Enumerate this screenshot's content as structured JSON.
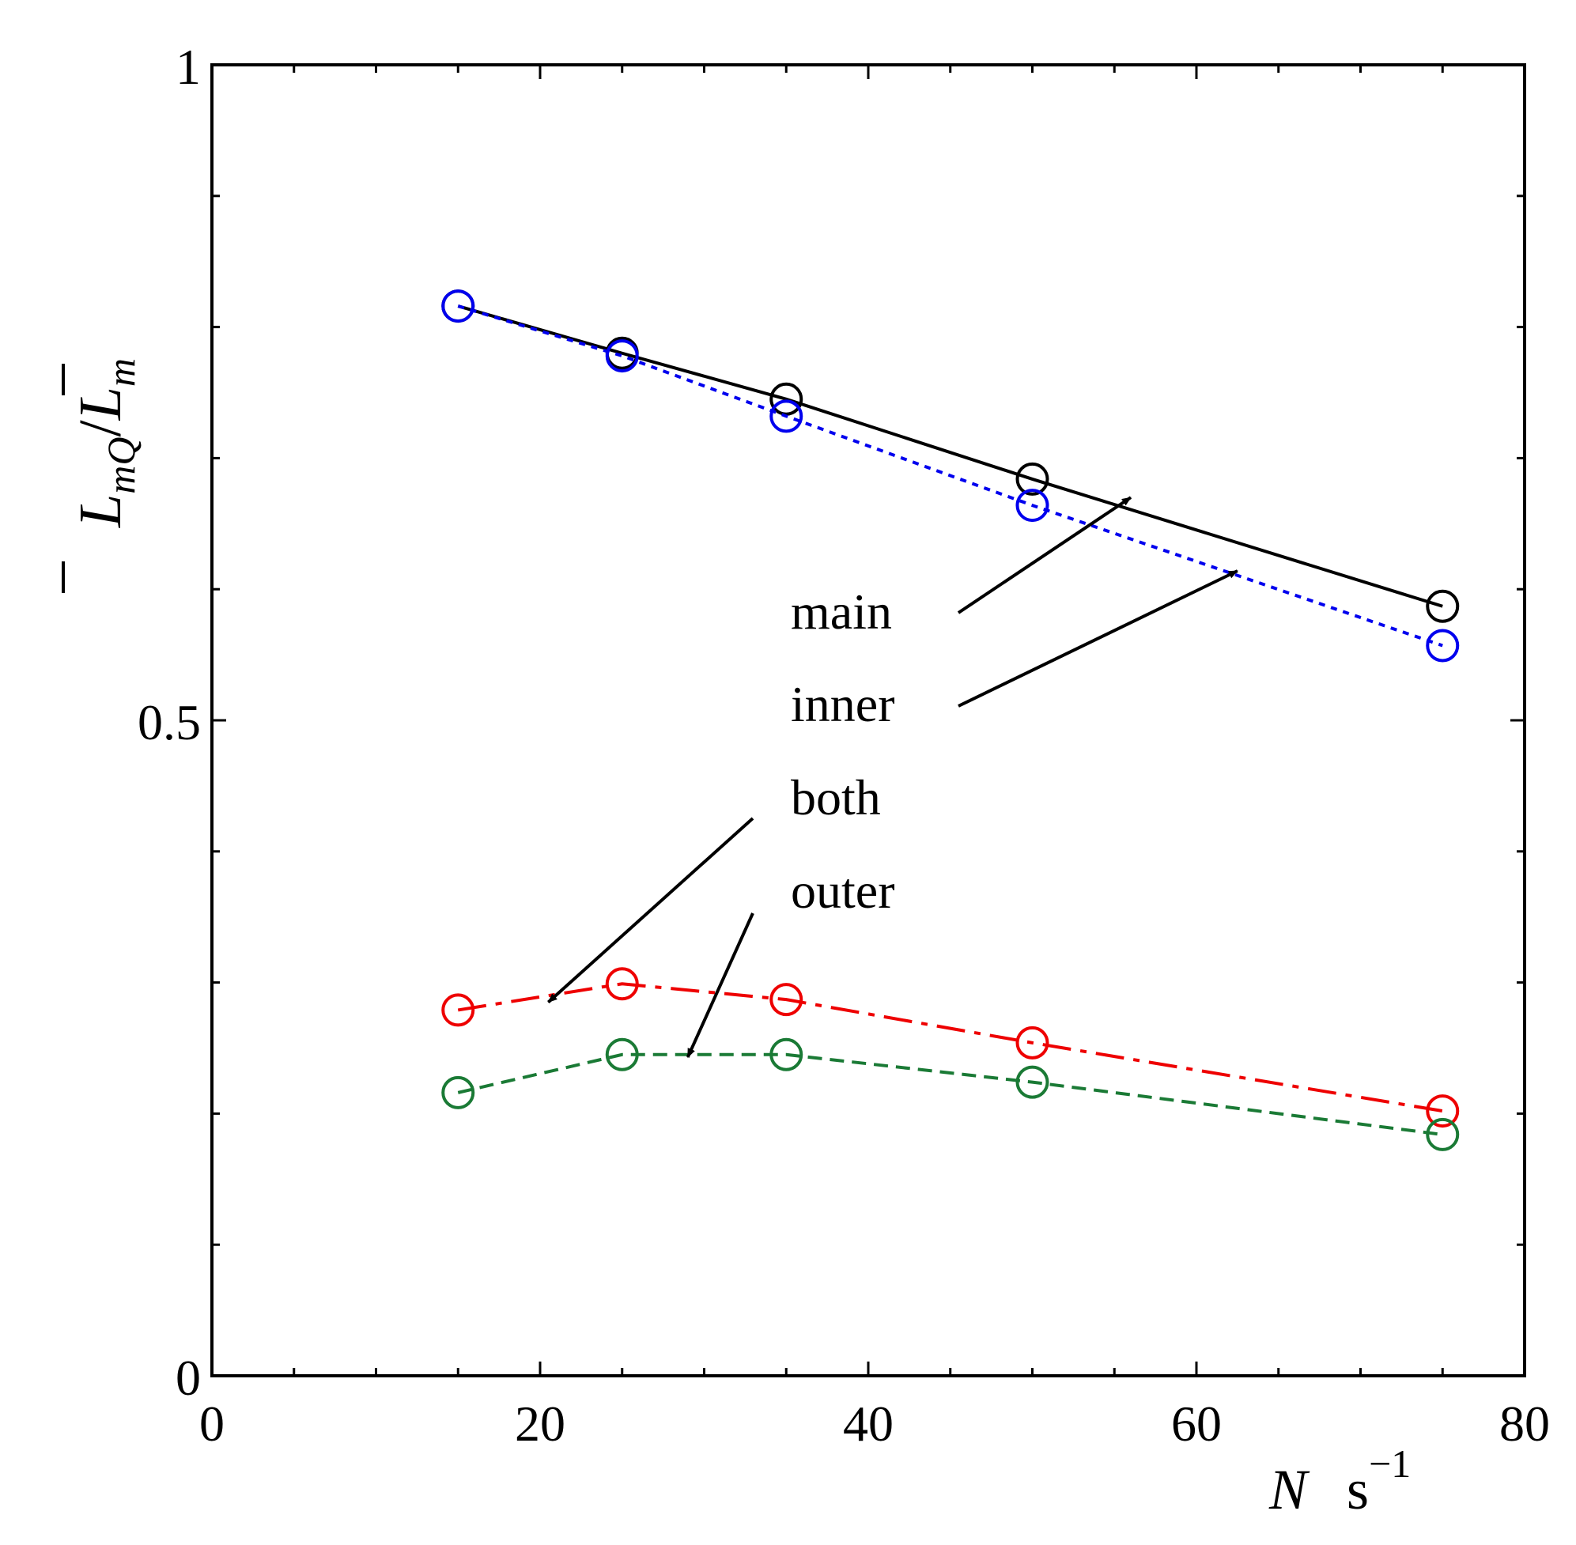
{
  "chart_data": {
    "type": "line",
    "title": "",
    "xlabel": {
      "var": "N",
      "unit": "s",
      "exp": "−1"
    },
    "ylabel": {
      "var": "L",
      "sub": "mQ",
      "sep": "/",
      "den": "L",
      "den_sub": "m"
    },
    "xlim": [
      0,
      80
    ],
    "ylim": [
      0,
      1
    ],
    "x_ticks": [
      "0",
      "20",
      "40",
      "60",
      "80"
    ],
    "x_tick_values": [
      0,
      20,
      40,
      60,
      80
    ],
    "y_ticks": [
      "0",
      "0.5",
      "1"
    ],
    "y_tick_values": [
      0,
      0.5,
      1
    ],
    "x": [
      15,
      25,
      35,
      50,
      75
    ],
    "series": [
      {
        "name": "main",
        "values": [
          0.816,
          0.78,
          0.745,
          0.684,
          0.587
        ],
        "color": "#000000",
        "style": "solid"
      },
      {
        "name": "inner",
        "values": [
          0.816,
          0.778,
          0.732,
          0.664,
          0.557
        ],
        "color": "#0000ee",
        "style": "dotted"
      },
      {
        "name": "both",
        "values": [
          0.279,
          0.299,
          0.287,
          0.254,
          0.202
        ],
        "color": "#ee0000",
        "style": "dashdot"
      },
      {
        "name": "outer",
        "values": [
          0.216,
          0.245,
          0.245,
          0.224,
          0.184
        ],
        "color": "#1a7a35",
        "style": "dashed"
      }
    ],
    "annotations": [
      {
        "text": "main",
        "target_series": "main",
        "target_x": 56,
        "target_y": 0.67
      },
      {
        "text": "inner",
        "target_series": "inner",
        "target_x": 62.5,
        "target_y": 0.614
      },
      {
        "text": "both",
        "target_series": "both",
        "target_x": 20.5,
        "target_y": 0.285
      },
      {
        "text": "outer",
        "target_series": "outer",
        "target_x": 29,
        "target_y": 0.243
      }
    ],
    "grid": false,
    "legend": "none"
  }
}
